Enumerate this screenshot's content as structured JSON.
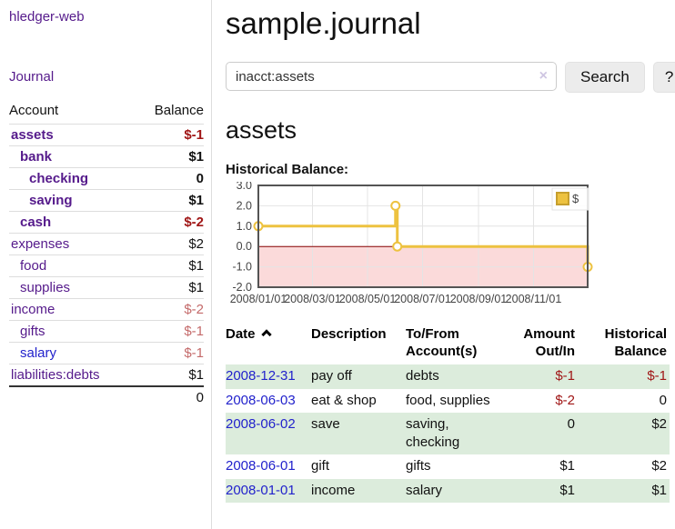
{
  "app": {
    "title": "hledger-web",
    "nav": {
      "journal": "Journal"
    }
  },
  "sidebar": {
    "columns": {
      "account": "Account",
      "balance": "Balance"
    },
    "accounts": [
      {
        "name": "assets",
        "depth": 1,
        "bold": true,
        "balance": "$-1"
      },
      {
        "name": "bank",
        "depth": 2,
        "bold": true,
        "balance": "$1"
      },
      {
        "name": "checking",
        "depth": 3,
        "bold": true,
        "balance": "0"
      },
      {
        "name": "saving",
        "depth": 3,
        "bold": true,
        "balance": "$1"
      },
      {
        "name": "cash",
        "depth": 2,
        "bold": true,
        "balance": "$-2"
      },
      {
        "name": "expenses",
        "depth": 1,
        "bold": false,
        "balance": "$2"
      },
      {
        "name": "food",
        "depth": 2,
        "bold": false,
        "balance": "$1"
      },
      {
        "name": "supplies",
        "depth": 2,
        "bold": false,
        "balance": "$1"
      },
      {
        "name": "income",
        "depth": 1,
        "bold": false,
        "balance": "$-2"
      },
      {
        "name": "gifts",
        "depth": 2,
        "bold": false,
        "balance": "$-1"
      },
      {
        "name": "salary",
        "depth": 2,
        "bold": false,
        "balance": "$-1",
        "unvisited": true
      },
      {
        "name": "liabilities:debts",
        "depth": 1,
        "bold": false,
        "balance": "$1"
      }
    ],
    "total": "0"
  },
  "main": {
    "title": "sample.journal",
    "search": {
      "value": "inacct:assets",
      "clear_icon": "×",
      "button_label": "Search",
      "help_label": "?"
    },
    "account_heading": "assets",
    "chart_title": "Historical Balance:"
  },
  "chart_data": {
    "type": "line",
    "step": true,
    "series": [
      {
        "name": "$",
        "color": "#edc240",
        "points": [
          [
            "2008-01-01",
            1
          ],
          [
            "2008-06-01",
            2
          ],
          [
            "2008-06-03",
            0
          ],
          [
            "2008-12-31",
            -1
          ]
        ]
      }
    ],
    "x_ticks": [
      "2008/01/01",
      "2008/03/01",
      "2008/05/01",
      "2008/07/01",
      "2008/09/01",
      "2008/11/01"
    ],
    "y_tick_labels": [
      "3.0",
      "2.0",
      "1.0",
      "0.0",
      "-1.0",
      "-2.0"
    ],
    "ylim": [
      -2,
      3
    ],
    "xlim": [
      "2008-01-01",
      "2008-12-31"
    ],
    "grid": true,
    "legend_position": "top-right",
    "negative_region_color": "#fbdada",
    "zero_line_color": "#8b0000",
    "border_color": "#545454"
  },
  "register": {
    "headers": {
      "date": "Date",
      "description": "Description",
      "accounts": "To/From Account(s)",
      "amount": "Amount Out/In",
      "balance": "Historical Balance"
    },
    "sort": {
      "column": "date",
      "direction": "ascending"
    },
    "rows": [
      {
        "date": "2008-12-31",
        "description": "pay off",
        "accounts": "debts",
        "amount": "$-1",
        "balance": "$-1"
      },
      {
        "date": "2008-06-03",
        "description": "eat & shop",
        "accounts": "food, supplies",
        "amount": "$-2",
        "balance": "0"
      },
      {
        "date": "2008-06-02",
        "description": "save",
        "accounts": "saving, checking",
        "amount": "0",
        "balance": "$2"
      },
      {
        "date": "2008-06-01",
        "description": "gift",
        "accounts": "gifts",
        "amount": "$1",
        "balance": "$2"
      },
      {
        "date": "2008-01-01",
        "description": "income",
        "accounts": "salary",
        "amount": "$1",
        "balance": "$1"
      }
    ]
  },
  "colors": {
    "link_purple": "#551a8b",
    "link_blue": "#2222cc",
    "negative_strong": "#a01616",
    "negative_muted": "#c46a6a",
    "row_green": "#dcecdc"
  }
}
